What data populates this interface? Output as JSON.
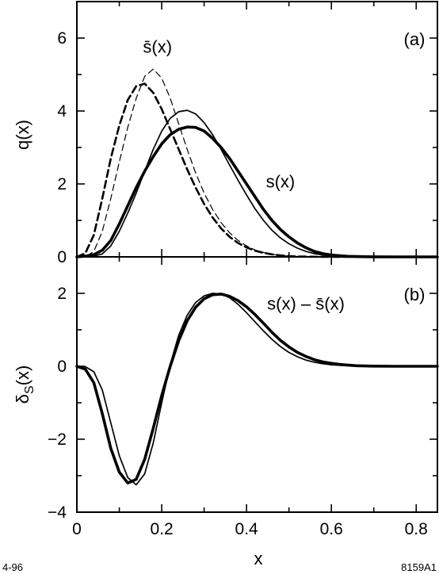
{
  "chart_data": [
    {
      "type": "line",
      "panel_label": "(a)",
      "ylabel": "q(x)",
      "xlim": [
        0,
        0.85
      ],
      "ylim": [
        0,
        7
      ],
      "yticks": [
        0,
        2,
        4,
        6
      ],
      "annotations": [
        {
          "text": "s̄(x)",
          "x": 0.19,
          "y": 5.6
        },
        {
          "text": "s(x)",
          "x": 0.48,
          "y": 1.9
        }
      ],
      "series": [
        {
          "style": "solid-thick",
          "x": [
            0,
            0.02,
            0.04,
            0.06,
            0.08,
            0.1,
            0.12,
            0.14,
            0.16,
            0.18,
            0.2,
            0.22,
            0.24,
            0.26,
            0.28,
            0.3,
            0.32,
            0.34,
            0.36,
            0.38,
            0.4,
            0.42,
            0.44,
            0.46,
            0.48,
            0.5,
            0.52,
            0.54,
            0.56,
            0.58,
            0.6,
            0.62,
            0.64,
            0.66,
            0.68,
            0.7,
            0.75,
            0.8,
            0.85
          ],
          "y": [
            0,
            0.02,
            0.06,
            0.18,
            0.45,
            0.9,
            1.4,
            1.9,
            2.35,
            2.75,
            3.1,
            3.35,
            3.5,
            3.56,
            3.55,
            3.45,
            3.25,
            3.0,
            2.7,
            2.35,
            2.0,
            1.65,
            1.3,
            1.0,
            0.75,
            0.55,
            0.38,
            0.25,
            0.15,
            0.09,
            0.05,
            0.03,
            0.015,
            0.008,
            0.004,
            0.002,
            0.0,
            0.0,
            0.0
          ]
        },
        {
          "style": "solid-thin",
          "x": [
            0,
            0.02,
            0.04,
            0.06,
            0.08,
            0.1,
            0.12,
            0.14,
            0.16,
            0.18,
            0.2,
            0.22,
            0.24,
            0.26,
            0.28,
            0.3,
            0.32,
            0.34,
            0.36,
            0.38,
            0.4,
            0.42,
            0.44,
            0.46,
            0.48,
            0.5,
            0.52,
            0.54,
            0.56,
            0.58,
            0.6,
            0.62,
            0.64,
            0.66,
            0.68,
            0.7,
            0.75,
            0.8,
            0.85
          ],
          "y": [
            0,
            0.0,
            0.02,
            0.08,
            0.3,
            0.7,
            1.2,
            1.75,
            2.35,
            2.95,
            3.45,
            3.8,
            3.98,
            4.02,
            3.92,
            3.68,
            3.35,
            2.95,
            2.52,
            2.1,
            1.7,
            1.32,
            1.0,
            0.73,
            0.52,
            0.36,
            0.24,
            0.15,
            0.09,
            0.05,
            0.03,
            0.015,
            0.008,
            0.004,
            0.002,
            0.0,
            0.0,
            0.0,
            0.0
          ]
        },
        {
          "style": "dashed-thick",
          "x": [
            0,
            0.02,
            0.04,
            0.06,
            0.08,
            0.1,
            0.12,
            0.14,
            0.16,
            0.18,
            0.2,
            0.22,
            0.24,
            0.26,
            0.28,
            0.3,
            0.32,
            0.34,
            0.36,
            0.38,
            0.4,
            0.42,
            0.44,
            0.46,
            0.48,
            0.5,
            0.52,
            0.55,
            0.6,
            0.65,
            0.7
          ],
          "y": [
            0,
            0.1,
            0.6,
            1.6,
            2.7,
            3.6,
            4.3,
            4.68,
            4.75,
            4.5,
            4.05,
            3.5,
            2.95,
            2.4,
            1.9,
            1.45,
            1.08,
            0.78,
            0.55,
            0.38,
            0.26,
            0.17,
            0.11,
            0.07,
            0.04,
            0.02,
            0.01,
            0.005,
            0.0,
            0.0,
            0.0
          ]
        },
        {
          "style": "dashed-thin",
          "x": [
            0,
            0.02,
            0.04,
            0.06,
            0.08,
            0.1,
            0.12,
            0.14,
            0.16,
            0.18,
            0.2,
            0.22,
            0.24,
            0.26,
            0.28,
            0.3,
            0.32,
            0.34,
            0.36,
            0.38,
            0.4,
            0.42,
            0.44,
            0.46,
            0.48,
            0.5,
            0.52,
            0.55,
            0.6,
            0.65,
            0.7
          ],
          "y": [
            0,
            0.0,
            0.15,
            0.7,
            1.6,
            2.6,
            3.55,
            4.35,
            4.95,
            5.15,
            4.9,
            4.35,
            3.65,
            2.95,
            2.3,
            1.75,
            1.3,
            0.94,
            0.66,
            0.45,
            0.3,
            0.19,
            0.12,
            0.07,
            0.04,
            0.02,
            0.01,
            0.005,
            0.0,
            0.0,
            0.0
          ]
        }
      ]
    },
    {
      "type": "line",
      "panel_label": "(b)",
      "ylabel": "δS(x)",
      "xlabel": "x",
      "xlim": [
        0,
        0.85
      ],
      "ylim": [
        -4,
        3
      ],
      "yticks": [
        -4,
        -2,
        0,
        2
      ],
      "xticks": [
        0,
        0.2,
        0.4,
        0.6,
        0.8
      ],
      "xtick_labels": [
        "0",
        "0.2",
        "0.4",
        "0.6",
        "0.8"
      ],
      "annotations": [
        {
          "text": "s(x) – s̄(x)",
          "x": 0.54,
          "y": 1.55
        }
      ],
      "series": [
        {
          "style": "solid-thick",
          "x": [
            0,
            0.02,
            0.04,
            0.06,
            0.08,
            0.1,
            0.12,
            0.14,
            0.16,
            0.18,
            0.2,
            0.22,
            0.24,
            0.26,
            0.28,
            0.3,
            0.32,
            0.34,
            0.36,
            0.38,
            0.4,
            0.42,
            0.44,
            0.46,
            0.48,
            0.5,
            0.52,
            0.54,
            0.56,
            0.58,
            0.6,
            0.62,
            0.64,
            0.66,
            0.7,
            0.75,
            0.8,
            0.85
          ],
          "y": [
            0,
            -0.08,
            -0.45,
            -1.3,
            -2.25,
            -2.9,
            -3.2,
            -3.1,
            -2.55,
            -1.7,
            -0.8,
            0.0,
            0.7,
            1.25,
            1.62,
            1.85,
            1.96,
            1.98,
            1.92,
            1.8,
            1.63,
            1.42,
            1.18,
            0.93,
            0.71,
            0.53,
            0.38,
            0.27,
            0.18,
            0.12,
            0.08,
            0.05,
            0.03,
            0.015,
            0.005,
            0.0,
            0.0,
            0.0
          ]
        },
        {
          "style": "solid-thin",
          "x": [
            0,
            0.02,
            0.04,
            0.06,
            0.08,
            0.1,
            0.12,
            0.14,
            0.16,
            0.18,
            0.2,
            0.22,
            0.24,
            0.26,
            0.28,
            0.3,
            0.32,
            0.34,
            0.36,
            0.38,
            0.4,
            0.42,
            0.44,
            0.46,
            0.48,
            0.5,
            0.52,
            0.54,
            0.56,
            0.58,
            0.6,
            0.62,
            0.64,
            0.66,
            0.7,
            0.75,
            0.8,
            0.85
          ],
          "y": [
            0,
            -0.01,
            -0.15,
            -0.65,
            -1.55,
            -2.45,
            -3.05,
            -3.25,
            -2.95,
            -2.1,
            -1.0,
            0.05,
            0.85,
            1.4,
            1.75,
            1.93,
            2.0,
            1.98,
            1.88,
            1.7,
            1.47,
            1.22,
            0.97,
            0.74,
            0.54,
            0.38,
            0.26,
            0.17,
            0.11,
            0.07,
            0.04,
            0.025,
            0.015,
            0.008,
            0.003,
            0.0,
            0.0,
            0.0
          ]
        }
      ]
    }
  ],
  "footer": {
    "left": "4-96",
    "right": "8159A1"
  }
}
